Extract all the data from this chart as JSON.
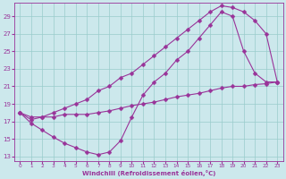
{
  "xlabel": "Windchill (Refroidissement éolien,°C)",
  "background_color": "#cce8ec",
  "grid_color": "#99cccc",
  "line_color": "#993399",
  "xlim": [
    -0.5,
    23.5
  ],
  "ylim": [
    12.5,
    30.5
  ],
  "yticks": [
    13,
    15,
    17,
    19,
    21,
    23,
    25,
    27,
    29
  ],
  "xticks": [
    0,
    1,
    2,
    3,
    4,
    5,
    6,
    7,
    8,
    9,
    10,
    11,
    12,
    13,
    14,
    15,
    16,
    17,
    18,
    19,
    20,
    21,
    22,
    23
  ],
  "line1_x": [
    0,
    1,
    2,
    3,
    4,
    5,
    6,
    7,
    8,
    9,
    10,
    11,
    12,
    13,
    14,
    15,
    16,
    17,
    18,
    19,
    20,
    21,
    22,
    23
  ],
  "line1_y": [
    18.0,
    17.2,
    17.5,
    18.0,
    18.5,
    19.0,
    19.5,
    20.5,
    21.0,
    22.0,
    22.5,
    23.5,
    24.5,
    25.5,
    26.5,
    27.5,
    28.5,
    29.5,
    30.2,
    30.0,
    29.5,
    28.5,
    27.0,
    21.5
  ],
  "line2_x": [
    0,
    1,
    2,
    3,
    4,
    5,
    6,
    7,
    8,
    9,
    10,
    11,
    12,
    13,
    14,
    15,
    16,
    17,
    18,
    19,
    20,
    21,
    22,
    23
  ],
  "line2_y": [
    18.0,
    16.8,
    16.0,
    15.2,
    14.5,
    14.0,
    13.5,
    13.2,
    13.5,
    14.8,
    17.5,
    20.0,
    21.5,
    22.5,
    24.0,
    25.0,
    26.5,
    28.0,
    29.5,
    29.0,
    25.0,
    22.5,
    21.5,
    21.5
  ],
  "line3_x": [
    0,
    1,
    2,
    3,
    4,
    5,
    6,
    7,
    8,
    9,
    10,
    11,
    12,
    13,
    14,
    15,
    16,
    17,
    18,
    19,
    20,
    21,
    22,
    23
  ],
  "line3_y": [
    18.0,
    17.5,
    17.5,
    17.5,
    17.8,
    17.8,
    17.8,
    18.0,
    18.2,
    18.5,
    18.8,
    19.0,
    19.2,
    19.5,
    19.8,
    20.0,
    20.2,
    20.5,
    20.8,
    21.0,
    21.0,
    21.2,
    21.3,
    21.5
  ]
}
